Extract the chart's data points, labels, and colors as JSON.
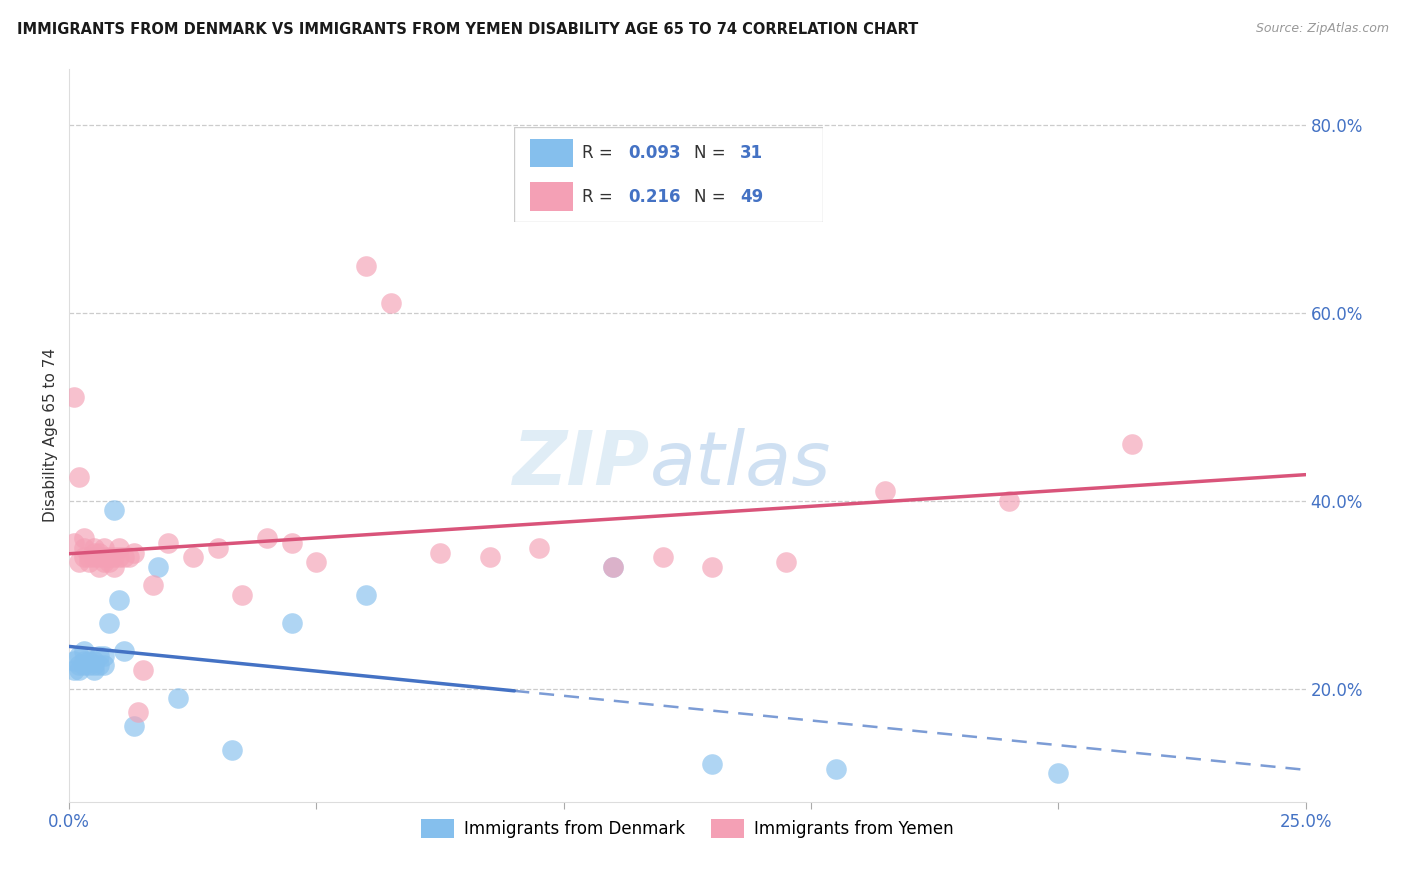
{
  "title": "IMMIGRANTS FROM DENMARK VS IMMIGRANTS FROM YEMEN DISABILITY AGE 65 TO 74 CORRELATION CHART",
  "source": "Source: ZipAtlas.com",
  "ylabel": "Disability Age 65 to 74",
  "xlim": [
    0.0,
    0.25
  ],
  "ylim": [
    0.08,
    0.86
  ],
  "xticks": [
    0.0,
    0.05,
    0.1,
    0.15,
    0.2,
    0.25
  ],
  "xticklabels": [
    "0.0%",
    "",
    "",
    "",
    "",
    "25.0%"
  ],
  "yticks_right": [
    0.2,
    0.4,
    0.6,
    0.8
  ],
  "yticklabels_right": [
    "20.0%",
    "40.0%",
    "60.0%",
    "80.0%"
  ],
  "color_denmark": "#85BFED",
  "color_yemen": "#F4A0B5",
  "color_denmark_line": "#4472C4",
  "color_yemen_line": "#D9547A",
  "watermark_zip": "ZIP",
  "watermark_atlas": "atlas",
  "denmark_x": [
    0.001,
    0.001,
    0.002,
    0.002,
    0.002,
    0.003,
    0.003,
    0.003,
    0.004,
    0.004,
    0.005,
    0.005,
    0.005,
    0.006,
    0.006,
    0.007,
    0.007,
    0.008,
    0.009,
    0.01,
    0.011,
    0.013,
    0.018,
    0.022,
    0.033,
    0.045,
    0.06,
    0.11,
    0.13,
    0.155,
    0.2
  ],
  "denmark_y": [
    0.22,
    0.23,
    0.22,
    0.225,
    0.235,
    0.225,
    0.23,
    0.24,
    0.225,
    0.23,
    0.225,
    0.22,
    0.23,
    0.225,
    0.235,
    0.225,
    0.235,
    0.27,
    0.39,
    0.295,
    0.24,
    0.16,
    0.33,
    0.19,
    0.135,
    0.27,
    0.3,
    0.33,
    0.12,
    0.115,
    0.11
  ],
  "yemen_x": [
    0.001,
    0.001,
    0.002,
    0.002,
    0.003,
    0.003,
    0.003,
    0.004,
    0.004,
    0.005,
    0.005,
    0.005,
    0.006,
    0.006,
    0.006,
    0.007,
    0.007,
    0.007,
    0.008,
    0.008,
    0.009,
    0.009,
    0.01,
    0.01,
    0.011,
    0.012,
    0.013,
    0.014,
    0.015,
    0.017,
    0.02,
    0.025,
    0.03,
    0.035,
    0.04,
    0.045,
    0.05,
    0.06,
    0.065,
    0.075,
    0.085,
    0.095,
    0.11,
    0.12,
    0.13,
    0.145,
    0.165,
    0.19,
    0.215
  ],
  "yemen_y": [
    0.355,
    0.51,
    0.335,
    0.425,
    0.34,
    0.35,
    0.36,
    0.335,
    0.34,
    0.34,
    0.345,
    0.35,
    0.34,
    0.33,
    0.345,
    0.335,
    0.34,
    0.35,
    0.335,
    0.34,
    0.33,
    0.34,
    0.34,
    0.35,
    0.34,
    0.34,
    0.345,
    0.175,
    0.22,
    0.31,
    0.355,
    0.34,
    0.35,
    0.3,
    0.36,
    0.355,
    0.335,
    0.65,
    0.61,
    0.345,
    0.34,
    0.35,
    0.33,
    0.34,
    0.33,
    0.335,
    0.41,
    0.4,
    0.46
  ],
  "legend_R1": "R = ",
  "legend_R1_val": "0.093",
  "legend_N1": "N = ",
  "legend_N1_val": "31",
  "legend_R2": "R =  ",
  "legend_R2_val": "0.216",
  "legend_N2": "N = ",
  "legend_N2_val": "49",
  "legend_label1": "Immigrants from Denmark",
  "legend_label2": "Immigrants from Yemen"
}
